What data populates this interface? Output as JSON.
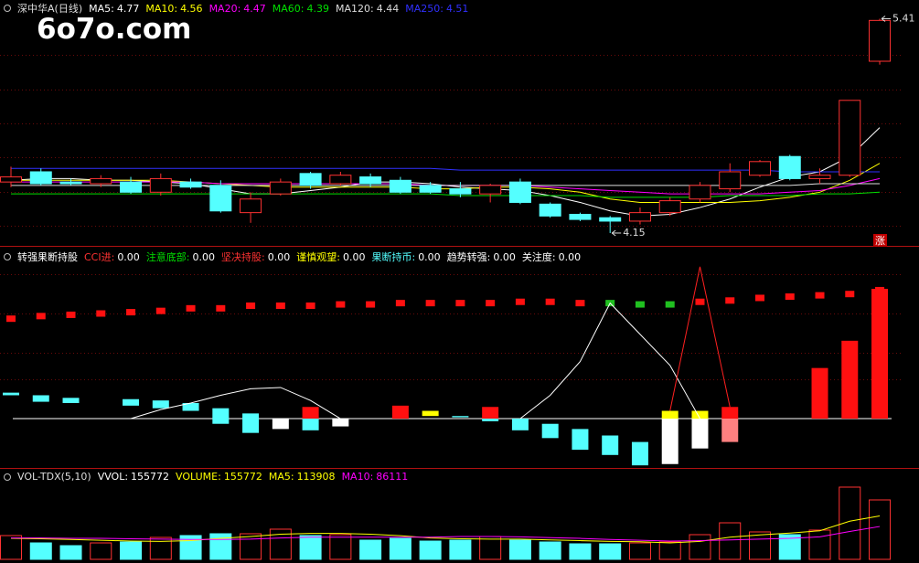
{
  "chart_data": [
    {
      "type": "candlestick",
      "title": "深中华A(日线)",
      "watermark": "6o7o.com",
      "badge": "涨",
      "ylim": [
        4.08,
        5.52
      ],
      "up_color": "#ff3232",
      "down_color": "#54ffff",
      "open": [
        4.45,
        4.51,
        4.45,
        4.44,
        4.45,
        4.39,
        4.45,
        4.43,
        4.27,
        4.38,
        4.5,
        4.44,
        4.48,
        4.46,
        4.43,
        4.41,
        4.38,
        4.45,
        4.32,
        4.26,
        4.24,
        4.22,
        4.27,
        4.35,
        4.41,
        4.49,
        4.6,
        4.47,
        4.49,
        5.16
      ],
      "high": [
        4.54,
        4.53,
        4.47,
        4.49,
        4.48,
        4.5,
        4.47,
        4.46,
        4.39,
        4.47,
        4.51,
        4.51,
        4.5,
        4.48,
        4.45,
        4.45,
        4.44,
        4.47,
        4.33,
        4.27,
        4.25,
        4.3,
        4.36,
        4.45,
        4.56,
        4.58,
        4.61,
        4.53,
        4.93,
        5.41
      ],
      "low": [
        4.42,
        4.43,
        4.43,
        4.42,
        4.38,
        4.37,
        4.41,
        4.27,
        4.21,
        4.37,
        4.41,
        4.43,
        4.42,
        4.38,
        4.38,
        4.36,
        4.33,
        4.32,
        4.24,
        4.22,
        4.15,
        4.2,
        4.25,
        4.33,
        4.39,
        4.48,
        4.46,
        4.44,
        4.48,
        5.14
      ],
      "close": [
        4.48,
        4.44,
        4.44,
        4.47,
        4.39,
        4.47,
        4.42,
        4.28,
        4.35,
        4.45,
        4.43,
        4.49,
        4.44,
        4.39,
        4.39,
        4.38,
        4.43,
        4.33,
        4.25,
        4.23,
        4.22,
        4.27,
        4.34,
        4.43,
        4.51,
        4.57,
        4.47,
        4.49,
        4.93,
        5.4
      ],
      "annotations": [
        {
          "value": 5.41,
          "x": 30
        },
        {
          "value": 4.15,
          "x": 21
        }
      ],
      "series": [
        {
          "name": "MA5:",
          "color": "#ffffff",
          "values": [
            4.46,
            4.47,
            4.47,
            4.46,
            4.46,
            4.45,
            4.44,
            4.41,
            4.38,
            4.38,
            4.4,
            4.42,
            4.45,
            4.45,
            4.44,
            4.42,
            4.41,
            4.4,
            4.37,
            4.33,
            4.28,
            4.25,
            4.26,
            4.3,
            4.35,
            4.42,
            4.48,
            4.51,
            4.6,
            4.77
          ]
        },
        {
          "name": "MA10:",
          "color": "#ffff00",
          "values": [
            4.46,
            4.46,
            4.46,
            4.46,
            4.46,
            4.46,
            4.45,
            4.44,
            4.43,
            4.42,
            4.42,
            4.42,
            4.42,
            4.42,
            4.41,
            4.41,
            4.42,
            4.42,
            4.41,
            4.39,
            4.35,
            4.33,
            4.33,
            4.33,
            4.33,
            4.34,
            4.36,
            4.39,
            4.46,
            4.56
          ]
        },
        {
          "name": "MA20:",
          "color": "#ff00ff",
          "values": [
            4.45,
            4.45,
            4.45,
            4.45,
            4.45,
            4.45,
            4.45,
            4.44,
            4.44,
            4.44,
            4.44,
            4.44,
            4.44,
            4.44,
            4.43,
            4.43,
            4.43,
            4.43,
            4.42,
            4.41,
            4.4,
            4.39,
            4.38,
            4.38,
            4.38,
            4.38,
            4.39,
            4.4,
            4.43,
            4.47
          ]
        },
        {
          "name": "MA60:",
          "color": "#00e000",
          "values": [
            4.38,
            4.38,
            4.38,
            4.38,
            4.38,
            4.38,
            4.38,
            4.38,
            4.38,
            4.38,
            4.38,
            4.38,
            4.38,
            4.38,
            4.38,
            4.37,
            4.37,
            4.37,
            4.37,
            4.37,
            4.36,
            4.36,
            4.36,
            4.36,
            4.37,
            4.37,
            4.37,
            4.38,
            4.38,
            4.39
          ]
        },
        {
          "name": "MA120:",
          "color": "#dddddd",
          "values": [
            4.43,
            4.43,
            4.43,
            4.43,
            4.43,
            4.43,
            4.43,
            4.43,
            4.43,
            4.43,
            4.43,
            4.43,
            4.43,
            4.43,
            4.43,
            4.43,
            4.43,
            4.43,
            4.43,
            4.43,
            4.43,
            4.43,
            4.43,
            4.43,
            4.43,
            4.43,
            4.43,
            4.44,
            4.44,
            4.44
          ]
        },
        {
          "name": "MA250:",
          "color": "#3030ff",
          "values": [
            4.53,
            4.53,
            4.53,
            4.53,
            4.53,
            4.53,
            4.53,
            4.53,
            4.53,
            4.53,
            4.53,
            4.53,
            4.53,
            4.53,
            4.53,
            4.52,
            4.52,
            4.52,
            4.52,
            4.52,
            4.52,
            4.52,
            4.52,
            4.52,
            4.52,
            4.52,
            4.51,
            4.51,
            4.51,
            4.51
          ]
        }
      ]
    },
    {
      "type": "indicator",
      "title": "转强果断持股",
      "ylim": [
        -38,
        131
      ],
      "items": [
        {
          "label": "CCI进:",
          "text": "0.00",
          "color": "#ff3232"
        },
        {
          "label": "注意底部:",
          "text": "0.00",
          "color": "#00e000"
        },
        {
          "label": "坚决持股:",
          "text": "0.00",
          "color": "#ff3232"
        },
        {
          "label": "谨慎观望:",
          "text": "0.00",
          "color": "#ffff00"
        },
        {
          "label": "果断持币:",
          "text": "0.00",
          "color": "#54ffff"
        },
        {
          "label": "趋势转强:",
          "text": "0.00",
          "color": "#ffffff"
        },
        {
          "label": "关注度:",
          "text": "0.00",
          "color": "#ffffff"
        }
      ],
      "segments": [
        {
          "x": 1,
          "from": 18,
          "to": 20,
          "color": "#54ffff"
        },
        {
          "x": 2,
          "from": 13,
          "to": 18,
          "color": "#54ffff"
        },
        {
          "x": 3,
          "from": 12,
          "to": 16,
          "color": "#54ffff"
        },
        {
          "x": 5,
          "from": 10,
          "to": 15,
          "color": "#54ffff"
        },
        {
          "x": 6,
          "from": 8,
          "to": 14,
          "color": "#54ffff"
        },
        {
          "x": 7,
          "from": 6,
          "to": 12,
          "color": "#54ffff"
        },
        {
          "x": 8,
          "from": -4,
          "to": 8,
          "color": "#54ffff"
        },
        {
          "x": 9,
          "from": -11,
          "to": 4,
          "color": "#54ffff"
        },
        {
          "x": 10,
          "from": -8,
          "to": 0,
          "color": "#ffffff"
        },
        {
          "x": 11,
          "from": 0,
          "to": 9,
          "color": "#ff1010"
        },
        {
          "x": 11,
          "from": -9,
          "to": 0,
          "color": "#54ffff"
        },
        {
          "x": 12,
          "from": -6,
          "to": 0,
          "color": "#ffffff"
        },
        {
          "x": 14,
          "from": 0,
          "to": 10,
          "color": "#ff1010"
        },
        {
          "x": 15,
          "from": 2,
          "to": 6,
          "color": "#ffff00"
        },
        {
          "x": 16,
          "from": 1,
          "to": 2,
          "color": "#54ffff"
        },
        {
          "x": 17,
          "from": 0,
          "to": 9,
          "color": "#ff1010"
        },
        {
          "x": 17,
          "from": -2,
          "to": 0,
          "color": "#54ffff"
        },
        {
          "x": 18,
          "from": -9,
          "to": 0,
          "color": "#54ffff"
        },
        {
          "x": 19,
          "from": -15,
          "to": -4,
          "color": "#54ffff"
        },
        {
          "x": 20,
          "from": -24,
          "to": -8,
          "color": "#54ffff"
        },
        {
          "x": 21,
          "from": -28,
          "to": -13,
          "color": "#54ffff"
        },
        {
          "x": 22,
          "from": -36,
          "to": -18,
          "color": "#54ffff"
        },
        {
          "x": 23,
          "from": -35,
          "to": 0,
          "color": "#ffffff"
        },
        {
          "x": 23,
          "from": 0,
          "to": 6,
          "color": "#ffff00"
        },
        {
          "x": 24,
          "from": -23,
          "to": 0,
          "color": "#ffffff"
        },
        {
          "x": 24,
          "from": 0,
          "to": 6,
          "color": "#ffff00"
        },
        {
          "x": 25,
          "from": 0,
          "to": 9,
          "color": "#ff1010"
        },
        {
          "x": 25,
          "from": -18,
          "to": 0,
          "color": "#ff8080"
        },
        {
          "x": 28,
          "from": 0,
          "to": 39,
          "color": "#ff1010"
        },
        {
          "x": 29,
          "from": 0,
          "to": 60,
          "color": "#ff1010"
        },
        {
          "x": 30,
          "from": 0,
          "to": 100,
          "color": "#ff1010"
        }
      ],
      "markers": {
        "values": [
          77,
          79,
          80,
          81,
          82,
          83,
          85,
          85,
          87,
          87,
          87,
          88,
          88,
          89,
          89,
          89,
          89,
          90,
          90,
          89,
          89,
          88,
          88,
          90,
          91,
          93,
          94,
          95,
          96,
          99
        ],
        "colors": [
          "#ff1010",
          "#ff1010",
          "#ff1010",
          "#ff1010",
          "#ff1010",
          "#ff1010",
          "#ff1010",
          "#ff1010",
          "#ff1010",
          "#ff1010",
          "#ff1010",
          "#ff1010",
          "#ff1010",
          "#ff1010",
          "#ff1010",
          "#ff1010",
          "#ff1010",
          "#ff1010",
          "#ff1010",
          "#ff1010",
          "#20c020",
          "#20c020",
          "#20c020",
          "#ff1010",
          "#ff1010",
          "#ff1010",
          "#ff1010",
          "#ff1010",
          "#ff1010",
          "#ff1010"
        ]
      },
      "lines": [
        {
          "color": "#ffffff",
          "values": [
            null,
            null,
            null,
            null,
            0,
            7,
            12,
            18,
            23,
            24,
            14,
            0,
            null,
            null,
            null,
            null,
            null,
            0,
            18,
            44,
            89,
            65,
            41,
            0,
            null,
            null,
            null,
            null,
            null,
            null
          ]
        },
        {
          "color": "#ff2020",
          "values": [
            null,
            null,
            null,
            null,
            null,
            null,
            null,
            null,
            null,
            null,
            null,
            null,
            null,
            null,
            null,
            null,
            null,
            null,
            null,
            null,
            null,
            null,
            6,
            117,
            9,
            null,
            null,
            null,
            null,
            null
          ]
        }
      ]
    },
    {
      "type": "bar",
      "title": "VOL-TDX(5,10)",
      "vvol_label": "VVOL:",
      "ylim": [
        0,
        232400
      ],
      "bar_colors": [
        "#ff3232",
        "#54ffff",
        "#54ffff",
        "#ff3232",
        "#54ffff",
        "#ff3232",
        "#54ffff",
        "#54ffff",
        "#ff3232",
        "#ff3232",
        "#54ffff",
        "#ff3232",
        "#54ffff",
        "#54ffff",
        "#54ffff",
        "#54ffff",
        "#ff3232",
        "#54ffff",
        "#54ffff",
        "#54ffff",
        "#54ffff",
        "#ff3232",
        "#ff3232",
        "#ff3232",
        "#ff3232",
        "#ff3232",
        "#54ffff",
        "#ff3232",
        "#ff3232",
        "#ff3232"
      ],
      "series": [
        {
          "name": "VOLUME:",
          "color": "#ffff00",
          "values": [
            62300,
            43100,
            35900,
            43100,
            45500,
            57500,
            62300,
            67100,
            67100,
            79100,
            62300,
            64700,
            50300,
            55100,
            47900,
            50300,
            59900,
            50300,
            45500,
            40700,
            40700,
            43100,
            45500,
            64700,
            95800,
            71900,
            64700,
            76700,
            189300,
            155772
          ]
        },
        {
          "name": "MA5:",
          "color": "#ffff00",
          "values": [
            55000,
            54000,
            52000,
            50000,
            48000,
            47000,
            49000,
            55000,
            60000,
            66000,
            68000,
            68000,
            66000,
            62000,
            56000,
            54000,
            53000,
            53000,
            51000,
            49000,
            47000,
            46000,
            43000,
            47000,
            58000,
            64000,
            69000,
            75000,
            100000,
            113908
          ]
        },
        {
          "name": "MA10:",
          "color": "#ff00ff",
          "values": [
            56000,
            56000,
            55000,
            55000,
            54000,
            53000,
            52000,
            52000,
            53000,
            56000,
            58000,
            58000,
            58000,
            58000,
            58000,
            60000,
            60000,
            59000,
            57000,
            55000,
            52000,
            50000,
            48000,
            49000,
            51000,
            53000,
            55000,
            59000,
            73000,
            86111
          ]
        }
      ]
    }
  ]
}
